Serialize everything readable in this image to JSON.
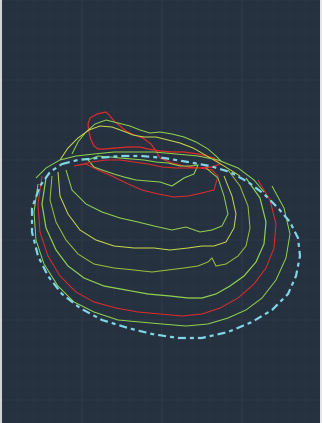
{
  "canvas": {
    "background": "#263140",
    "grid_color": "#2f3a49",
    "grid_major_color": "#35414f",
    "colors": {
      "red": "#e02b2b",
      "green": "#8fd14f",
      "yellow_green": "#c7d94a",
      "olive_green": "#9bbf3c",
      "boundary": "#7fd6e6"
    }
  },
  "layers": {
    "contours": [
      {
        "name": "contour-line-1",
        "color": "red"
      },
      {
        "name": "contour-line-2",
        "color": "green"
      },
      {
        "name": "contour-line-3",
        "color": "yellow_green"
      },
      {
        "name": "contour-line-4",
        "color": "green"
      },
      {
        "name": "contour-line-5",
        "color": "red"
      },
      {
        "name": "contour-line-6",
        "color": "green"
      },
      {
        "name": "contour-line-7",
        "color": "yellow_green"
      },
      {
        "name": "contour-line-8",
        "color": "olive_green"
      },
      {
        "name": "contour-line-9",
        "color": "green"
      },
      {
        "name": "contour-line-10",
        "color": "red"
      },
      {
        "name": "contour-line-11",
        "color": "green"
      },
      {
        "name": "contour-line-12",
        "color": "green"
      }
    ],
    "boundary": {
      "name": "dashed-boundary",
      "color": "boundary",
      "style": "dashed"
    }
  }
}
